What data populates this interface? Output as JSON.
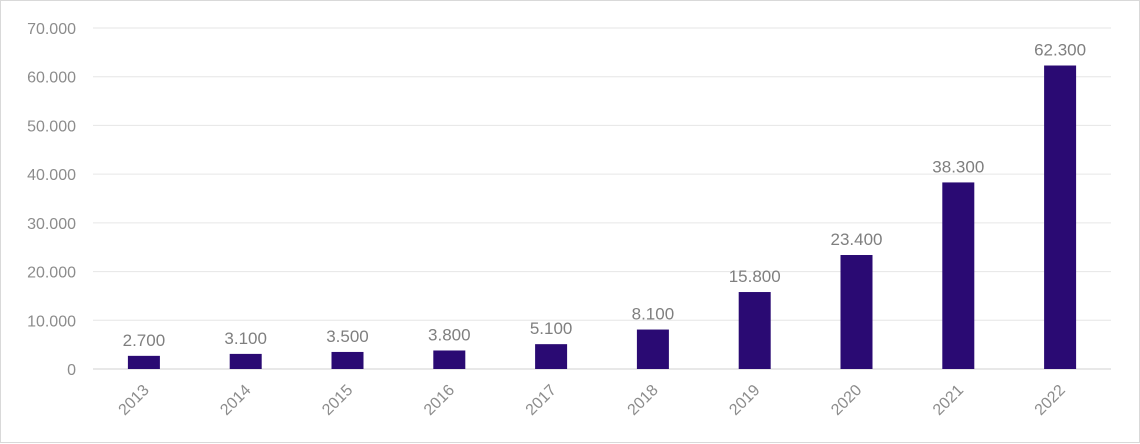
{
  "chart_data": {
    "type": "bar",
    "categories": [
      "2013",
      "2014",
      "2015",
      "2016",
      "2017",
      "2018",
      "2019",
      "2020",
      "2021",
      "2022"
    ],
    "values": [
      2700,
      3100,
      3500,
      3800,
      5100,
      8100,
      15800,
      23400,
      38300,
      62300
    ],
    "data_labels": [
      "2.700",
      "3.100",
      "3.500",
      "3.800",
      "5.100",
      "8.100",
      "15.800",
      "23.400",
      "38.300",
      "62.300"
    ],
    "y_ticks": [
      0,
      10000,
      20000,
      30000,
      40000,
      50000,
      60000,
      70000
    ],
    "y_tick_labels": [
      "0",
      "10.000",
      "20.000",
      "30.000",
      "40.000",
      "50.000",
      "60.000",
      "70.000"
    ],
    "ylim": [
      0,
      70000
    ],
    "title": "",
    "xlabel": "",
    "ylabel": "",
    "grid": true,
    "legend": "none",
    "bar_color": "#2a0a73",
    "x_tick_rotation_deg": -45
  }
}
